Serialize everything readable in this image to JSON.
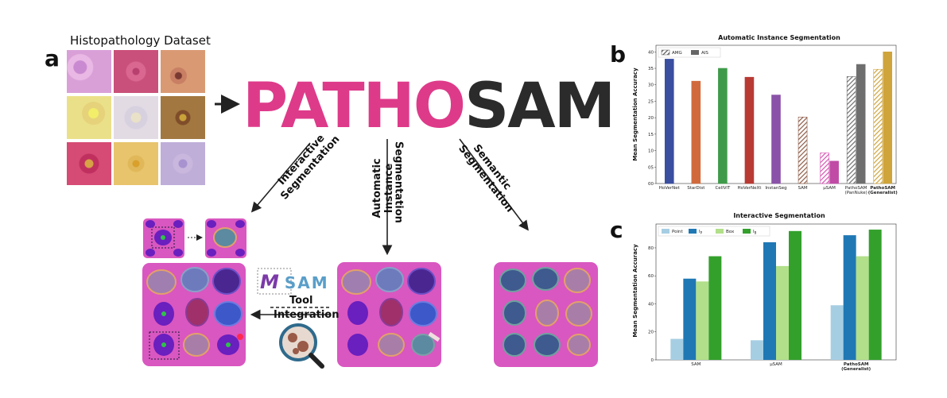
{
  "figure": {
    "panel_a_letter": "a",
    "panel_b_letter": "b",
    "panel_c_letter": "c",
    "dataset_title": "Histopathology Dataset",
    "logo_patho": "PATHO",
    "logo_sam": "SAM",
    "arrow_interactive": "Interactive Segmentation",
    "arrow_automatic_1": "Automatic Instance",
    "arrow_automatic_2": "Segmentation",
    "arrow_semantic": "Semantic Segmentation",
    "tool_word": "Tool",
    "integration_word": "Integration",
    "musam_logo_prefix": "M",
    "musam_logo_suffix": "SAM",
    "colors": {
      "patho_pink": "#de3a8a",
      "sam_dark": "#2b2b2b",
      "tile_bg": "#d957c0"
    }
  },
  "chart_data": [
    {
      "type": "bar",
      "title": "Automatic Instance Segmentation",
      "ylabel": "Mean Segmentation Accuracy",
      "xlabel": "",
      "ylim": [
        0,
        0.42
      ],
      "yticks": [
        "0.00",
        "0.05",
        "0.10",
        "0.15",
        "0.20",
        "0.25",
        "0.30",
        "0.35",
        "0.40"
      ],
      "legend": [
        "AMG",
        "AIS"
      ],
      "legend_position": "top-left",
      "categories": [
        {
          "label": "HoVerNet",
          "sub": "",
          "bold": false
        },
        {
          "label": "StarDist",
          "sub": "",
          "bold": false
        },
        {
          "label": "CellViT",
          "sub": "",
          "bold": false
        },
        {
          "label": "HoVerNeXt",
          "sub": "",
          "bold": false
        },
        {
          "label": "InstanSeg",
          "sub": "",
          "bold": false
        },
        {
          "label": "SAM",
          "sub": "",
          "bold": false
        },
        {
          "label": "µSAM",
          "sub": "",
          "bold": false
        },
        {
          "label": "PathoSAM",
          "sub": "(PanNuke)",
          "bold": false
        },
        {
          "label": "PathoSAM",
          "sub": "(Generalist)",
          "bold": true
        }
      ],
      "bars": [
        {
          "category": 0,
          "value": 0.378,
          "color": "#3a4fa0",
          "hatch": false
        },
        {
          "category": 1,
          "value": 0.311,
          "color": "#d06a3c",
          "hatch": false
        },
        {
          "category": 2,
          "value": 0.35,
          "color": "#3f9b4a",
          "hatch": false
        },
        {
          "category": 3,
          "value": 0.323,
          "color": "#b83a33",
          "hatch": false
        },
        {
          "category": 4,
          "value": 0.269,
          "color": "#8a52a8",
          "hatch": false
        },
        {
          "category": 5,
          "value": 0.202,
          "color": "#8c5a45",
          "hatch": true
        },
        {
          "category": 6,
          "value": 0.093,
          "color": "#d552b2",
          "hatch": true
        },
        {
          "category": 6,
          "value": 0.068,
          "color": "#c04aa6",
          "hatch": false
        },
        {
          "category": 7,
          "value": 0.325,
          "color": "#6e6e6e",
          "hatch": true
        },
        {
          "category": 7,
          "value": 0.362,
          "color": "#6e6e6e",
          "hatch": false
        },
        {
          "category": 8,
          "value": 0.347,
          "color": "#cfa43b",
          "hatch": true
        },
        {
          "category": 8,
          "value": 0.4,
          "color": "#cfa43b",
          "hatch": false
        }
      ]
    },
    {
      "type": "bar",
      "title": "Interactive Segmentation",
      "ylabel": "Mean Segmentation Accuracy",
      "xlabel": "",
      "ylim": [
        0,
        0.97
      ],
      "yticks": [
        "0",
        "0.20",
        "0.40",
        "0.60",
        "0.80"
      ],
      "legend_position": "top-left",
      "categories": [
        {
          "label": "SAM",
          "sub": "",
          "bold": false
        },
        {
          "label": "µSAM",
          "sub": "",
          "bold": false
        },
        {
          "label": "PathoSAM",
          "sub": "(Generalist)",
          "bold": true
        }
      ],
      "series": [
        {
          "name": "Point",
          "legend_sub": "",
          "color": "#a6cee3",
          "values": [
            0.15,
            0.14,
            0.39
          ]
        },
        {
          "name": "I",
          "legend_sub": "P",
          "color": "#1f78b4",
          "values": [
            0.58,
            0.84,
            0.89
          ]
        },
        {
          "name": "Box",
          "legend_sub": "",
          "color": "#b2df8a",
          "values": [
            0.56,
            0.67,
            0.74
          ]
        },
        {
          "name": "I",
          "legend_sub": "B",
          "color": "#33a02c",
          "values": [
            0.74,
            0.92,
            0.93
          ]
        }
      ]
    }
  ]
}
